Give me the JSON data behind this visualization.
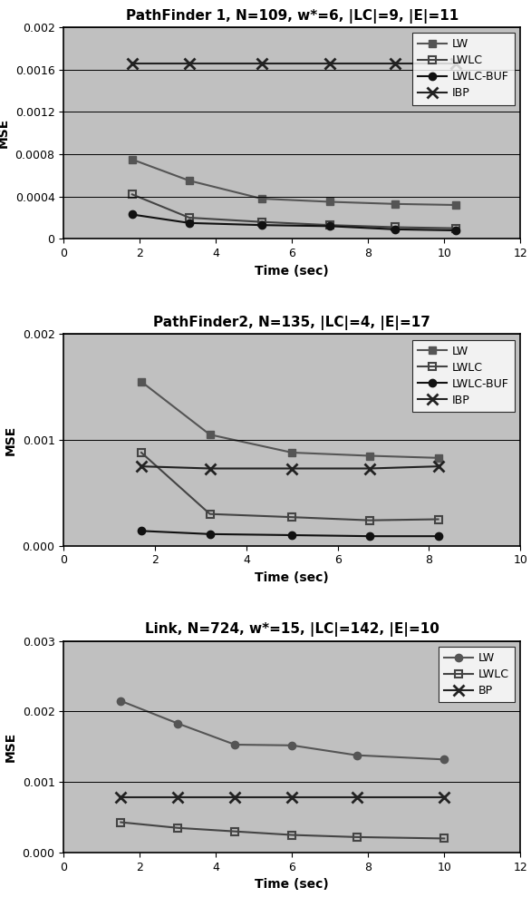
{
  "plot1": {
    "title": "PathFinder 1, N=109, w*=6, |LC|=9, |E|=11",
    "xlim": [
      0,
      12
    ],
    "ylim": [
      0,
      0.002
    ],
    "yticks": [
      0,
      0.0004,
      0.0008,
      0.0012,
      0.0016,
      0.002
    ],
    "xticks": [
      0,
      2,
      4,
      6,
      8,
      10,
      12
    ],
    "series": [
      {
        "label": "LW",
        "x": [
          1.8,
          3.3,
          5.2,
          7.0,
          8.7,
          10.3
        ],
        "y": [
          0.00075,
          0.00055,
          0.00038,
          0.00035,
          0.00033,
          0.00032
        ],
        "marker": "s",
        "color": "#555555",
        "fillstyle": "full"
      },
      {
        "label": "LWLC",
        "x": [
          1.8,
          3.3,
          5.2,
          7.0,
          8.7,
          10.3
        ],
        "y": [
          0.00042,
          0.0002,
          0.00016,
          0.00013,
          0.00011,
          0.0001
        ],
        "marker": "s",
        "color": "#444444",
        "fillstyle": "none"
      },
      {
        "label": "LWLC-BUF",
        "x": [
          1.8,
          3.3,
          5.2,
          7.0,
          8.7,
          10.3
        ],
        "y": [
          0.00023,
          0.00015,
          0.00013,
          0.00012,
          9e-05,
          8e-05
        ],
        "marker": "o",
        "color": "#111111",
        "fillstyle": "full"
      },
      {
        "label": "IBP",
        "x": [
          1.8,
          3.3,
          5.2,
          7.0,
          8.7,
          10.3
        ],
        "y": [
          0.00166,
          0.00166,
          0.00166,
          0.00166,
          0.00166,
          0.00166
        ],
        "marker": "x",
        "color": "#222222",
        "fillstyle": "full"
      }
    ]
  },
  "plot2": {
    "title": "PathFinder2, N=135, |LC|=4, |E|=17",
    "xlim": [
      0,
      10
    ],
    "ylim": [
      0,
      0.002
    ],
    "yticks": [
      0.0,
      0.001,
      0.002
    ],
    "xticks": [
      0,
      2,
      4,
      6,
      8,
      10
    ],
    "series": [
      {
        "label": "LW",
        "x": [
          1.7,
          3.2,
          5.0,
          6.7,
          8.2
        ],
        "y": [
          0.00155,
          0.00105,
          0.00088,
          0.00085,
          0.00083
        ],
        "marker": "s",
        "color": "#555555",
        "fillstyle": "full"
      },
      {
        "label": "LWLC",
        "x": [
          1.7,
          3.2,
          5.0,
          6.7,
          8.2
        ],
        "y": [
          0.00088,
          0.0003,
          0.00027,
          0.00024,
          0.00025
        ],
        "marker": "s",
        "color": "#444444",
        "fillstyle": "none"
      },
      {
        "label": "LWLC-BUF",
        "x": [
          1.7,
          3.2,
          5.0,
          6.7,
          8.2
        ],
        "y": [
          0.00014,
          0.00011,
          0.0001,
          9e-05,
          9e-05
        ],
        "marker": "o",
        "color": "#111111",
        "fillstyle": "full"
      },
      {
        "label": "IBP",
        "x": [
          1.7,
          3.2,
          5.0,
          6.7,
          8.2
        ],
        "y": [
          0.00075,
          0.00073,
          0.00073,
          0.00073,
          0.00075
        ],
        "marker": "x",
        "color": "#222222",
        "fillstyle": "full"
      }
    ]
  },
  "plot3": {
    "title": "Link, N=724, w*=15, |LC|=142, |E|=10",
    "xlim": [
      0,
      12
    ],
    "ylim": [
      0,
      0.003
    ],
    "yticks": [
      0.0,
      0.001,
      0.002,
      0.003
    ],
    "xticks": [
      0,
      2,
      4,
      6,
      8,
      10,
      12
    ],
    "series": [
      {
        "label": "LW",
        "x": [
          1.5,
          3.0,
          4.5,
          6.0,
          7.7,
          10.0
        ],
        "y": [
          0.00215,
          0.00183,
          0.00153,
          0.00152,
          0.00138,
          0.00132
        ],
        "marker": "o",
        "color": "#555555",
        "fillstyle": "full"
      },
      {
        "label": "LWLC",
        "x": [
          1.5,
          3.0,
          4.5,
          6.0,
          7.7,
          10.0
        ],
        "y": [
          0.00043,
          0.00035,
          0.0003,
          0.00025,
          0.00022,
          0.0002
        ],
        "marker": "s",
        "color": "#444444",
        "fillstyle": "none"
      },
      {
        "label": "BP",
        "x": [
          1.5,
          3.0,
          4.5,
          6.0,
          7.7,
          10.0
        ],
        "y": [
          0.00078,
          0.00078,
          0.00078,
          0.00078,
          0.00078,
          0.00078
        ],
        "marker": "x",
        "color": "#222222",
        "fillstyle": "full"
      }
    ]
  },
  "bg_color": "#c0c0c0",
  "fig_bg_color": "#ffffff",
  "xlabel": "Time (sec)",
  "ylabel": "MSE",
  "title_fontsize": 11,
  "label_fontsize": 10,
  "tick_fontsize": 9,
  "legend_fontsize": 9,
  "marker_size": 6,
  "line_width": 1.5
}
